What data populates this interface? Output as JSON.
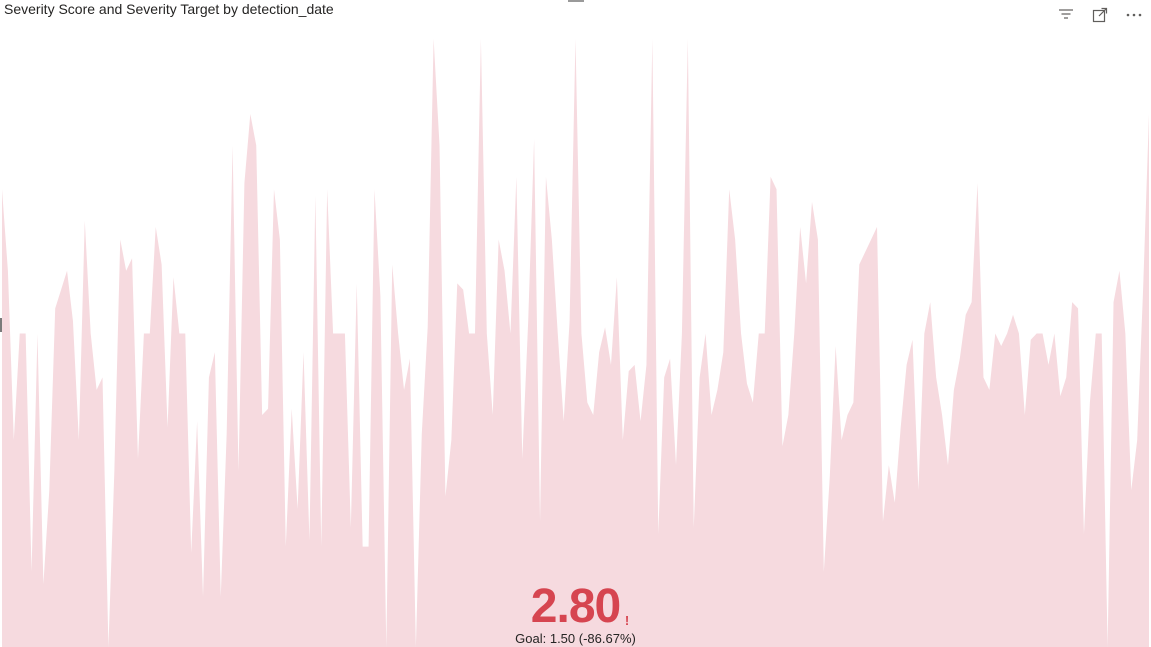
{
  "visual": {
    "title": "Severity Score and Severity Target by detection_date",
    "toolbar": [
      {
        "icon": "filter-icon"
      },
      {
        "icon": "focus-mode-icon"
      },
      {
        "icon": "more-options-icon"
      }
    ]
  },
  "kpi": {
    "value": "2.80",
    "alert": "!",
    "goal_text": "Goal: 1.50 (-86.67%)",
    "color": "#d64550"
  },
  "chart_data": {
    "type": "area",
    "title": "Severity Score and Severity Target by detection_date",
    "xlabel": "",
    "ylabel": "",
    "fill_color": "#f6dadf",
    "ylim": [
      0,
      5
    ],
    "values": [
      3.65,
      3.0,
      1.65,
      2.5,
      2.5,
      0.6,
      2.5,
      0.5,
      1.25,
      2.7,
      2.85,
      3.0,
      2.6,
      1.65,
      3.4,
      2.5,
      2.05,
      2.15,
      0.0,
      1.4,
      3.25,
      3.0,
      3.1,
      1.5,
      2.5,
      2.5,
      3.35,
      3.05,
      1.75,
      2.95,
      2.5,
      2.5,
      0.75,
      1.8,
      0.4,
      2.15,
      2.35,
      0.4,
      1.7,
      4.0,
      1.4,
      3.7,
      4.25,
      4.0,
      1.85,
      1.9,
      3.65,
      3.25,
      0.8,
      1.9,
      1.1,
      2.35,
      0.85,
      3.6,
      0.8,
      3.65,
      2.5,
      2.5,
      2.5,
      0.95,
      2.9,
      0.8,
      0.8,
      3.65,
      2.8,
      0.0,
      3.05,
      2.5,
      2.05,
      2.3,
      0.0,
      1.7,
      2.55,
      4.85,
      4.0,
      1.2,
      1.65,
      2.9,
      2.85,
      2.5,
      2.5,
      4.85,
      2.5,
      1.85,
      3.25,
      3.0,
      2.5,
      3.75,
      1.5,
      2.6,
      4.05,
      1.0,
      3.75,
      3.25,
      2.5,
      1.8,
      2.6,
      4.85,
      2.5,
      1.95,
      1.85,
      2.35,
      2.55,
      2.25,
      2.95,
      1.65,
      2.2,
      2.25,
      1.8,
      2.25,
      4.85,
      0.9,
      2.15,
      2.3,
      1.45,
      2.5,
      4.85,
      0.95,
      2.15,
      2.5,
      1.85,
      2.05,
      2.35,
      3.65,
      3.25,
      2.5,
      2.1,
      1.95,
      2.5,
      2.5,
      3.75,
      3.65,
      1.6,
      1.85,
      2.5,
      3.35,
      2.9,
      3.55,
      3.25,
      0.6,
      1.35,
      2.4,
      1.65,
      1.85,
      1.95,
      3.05,
      3.15,
      3.25,
      3.35,
      1.0,
      1.45,
      1.15,
      1.75,
      2.25,
      2.45,
      1.25,
      2.5,
      2.75,
      2.15,
      1.85,
      1.45,
      2.05,
      2.3,
      2.65,
      2.75,
      3.7,
      2.15,
      2.05,
      2.5,
      2.4,
      2.5,
      2.65,
      2.5,
      1.85,
      2.45,
      2.5,
      2.5,
      2.25,
      2.5,
      2.0,
      2.15,
      2.75,
      2.7,
      0.9,
      1.95,
      2.5,
      2.5,
      0.0,
      2.75,
      3.0,
      2.5,
      1.25,
      1.65,
      2.85,
      4.25
    ]
  }
}
